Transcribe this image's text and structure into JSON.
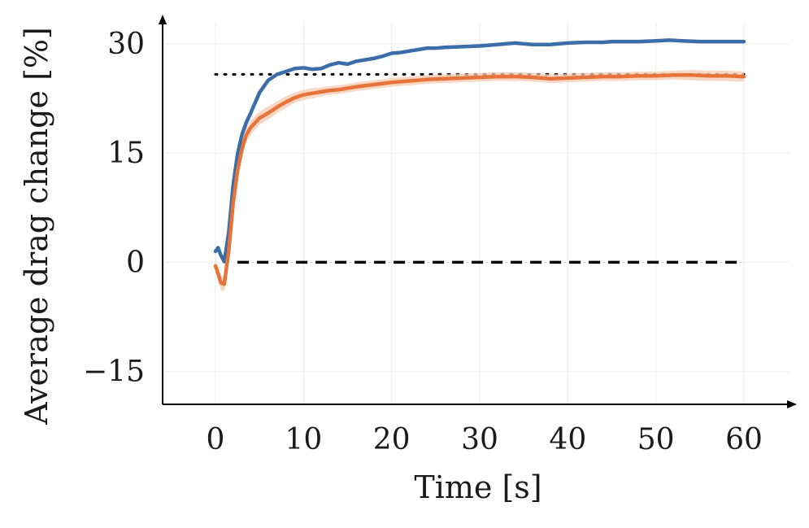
{
  "chart_data": {
    "type": "line",
    "title": "",
    "xlabel": "Time [s]",
    "ylabel": "Average drag change [%]",
    "xlim": [
      -6,
      66
    ],
    "ylim": [
      -19.5,
      34
    ],
    "xticks": [
      0,
      10,
      20,
      30,
      40,
      50,
      60
    ],
    "yticks": [
      -15,
      0,
      15,
      30
    ],
    "ytick_labels": [
      "−15",
      "0",
      "15",
      "30"
    ],
    "grid": true,
    "legend": "none",
    "series": [
      {
        "color": "#3b6ea8",
        "band": false,
        "x": [
          0,
          0.3,
          0.6,
          1.0,
          1.5,
          2.0,
          2.5,
          3.0,
          3.5,
          4.0,
          5.0,
          6.0,
          7.0,
          8.0,
          9.0,
          10.0,
          11.0,
          12.0,
          13.0,
          14.0,
          15.0,
          16.0,
          17.0,
          18.0,
          19.0,
          20.0,
          21.0,
          22.0,
          23.0,
          24.0,
          25.0,
          26.0,
          28.0,
          30.0,
          32.0,
          34.0,
          35.0,
          36.0,
          38.0,
          40.0,
          42.0,
          44.0,
          45.0,
          46.0,
          48.0,
          50.0,
          51.5,
          53.0,
          55.0,
          57.0,
          59.0,
          60.0
        ],
        "y": [
          1.5,
          2.0,
          1.0,
          0.1,
          4.0,
          10.5,
          14.8,
          17.5,
          19.2,
          20.5,
          23.3,
          25.0,
          25.8,
          26.2,
          26.6,
          26.7,
          26.5,
          26.6,
          27.1,
          27.4,
          27.2,
          27.6,
          27.8,
          28.0,
          28.3,
          28.7,
          28.8,
          29.0,
          29.2,
          29.4,
          29.4,
          29.5,
          29.6,
          29.7,
          29.9,
          30.1,
          30.0,
          29.9,
          29.9,
          30.1,
          30.2,
          30.2,
          30.3,
          30.3,
          30.3,
          30.4,
          30.5,
          30.4,
          30.3,
          30.3,
          30.3,
          30.3
        ]
      },
      {
        "color": "#e8733a",
        "band": true,
        "band_color": "#f7c9b2",
        "x": [
          0,
          0.3,
          0.6,
          1.0,
          1.5,
          2.0,
          2.5,
          3.0,
          3.5,
          4.0,
          5.0,
          6.0,
          7.0,
          8.0,
          9.0,
          10.0,
          11.0,
          12.0,
          13.0,
          14.0,
          15.0,
          16.0,
          18.0,
          20.0,
          22.0,
          24.0,
          26.0,
          28.0,
          30.0,
          32.0,
          34.0,
          36.0,
          38.0,
          40.0,
          42.0,
          44.0,
          46.0,
          48.0,
          50.0,
          52.0,
          54.0,
          56.0,
          58.0,
          60.0
        ],
        "y": [
          -0.5,
          -1.5,
          -2.8,
          -3.0,
          1.5,
          8.0,
          12.5,
          15.5,
          17.5,
          18.5,
          19.8,
          20.5,
          21.3,
          22.0,
          22.6,
          23.0,
          23.2,
          23.4,
          23.6,
          23.7,
          23.9,
          24.1,
          24.4,
          24.7,
          24.9,
          25.1,
          25.2,
          25.3,
          25.4,
          25.5,
          25.5,
          25.4,
          25.2,
          25.3,
          25.4,
          25.5,
          25.5,
          25.6,
          25.6,
          25.7,
          25.7,
          25.6,
          25.6,
          25.5
        ],
        "band_halfwidth": [
          0.8,
          0.9,
          1.0,
          1.0,
          1.1,
          1.1,
          1.1,
          1.0,
          1.0,
          1.0,
          0.9,
          0.9,
          0.8,
          0.8,
          0.7,
          0.7,
          0.7,
          0.6,
          0.6,
          0.6,
          0.6,
          0.6,
          0.6,
          0.6,
          0.6,
          0.6,
          0.6,
          0.6,
          0.6,
          0.6,
          0.6,
          0.6,
          0.6,
          0.6,
          0.6,
          0.6,
          0.6,
          0.6,
          0.6,
          0.6,
          0.7,
          0.7,
          0.7,
          0.7
        ]
      }
    ],
    "reference_lines": [
      {
        "y": 25.8,
        "x_range": [
          0,
          60
        ],
        "style": "dotted",
        "color": "#000000"
      },
      {
        "y": 0,
        "x_range": [
          2.5,
          60
        ],
        "style": "dashed",
        "color": "#000000"
      }
    ]
  }
}
